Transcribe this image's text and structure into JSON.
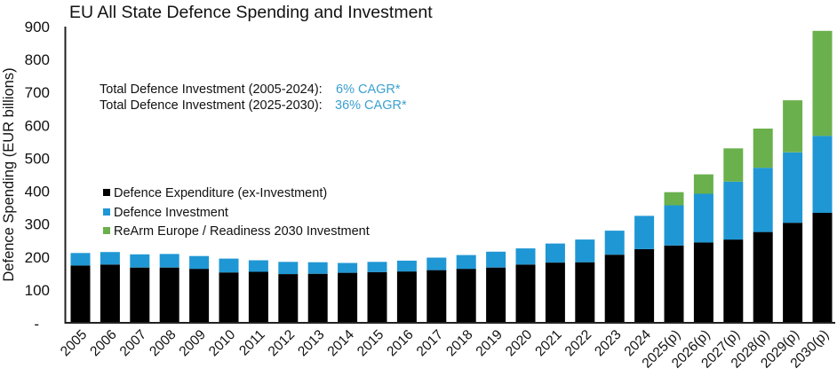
{
  "chart_data": {
    "type": "bar",
    "stacked": true,
    "title": "EU All State Defence Spending and Investment",
    "xlabel": "",
    "ylabel": "Defence Spending (EUR billions)",
    "ylim": [
      0,
      900
    ],
    "yticks": [
      0,
      100,
      200,
      300,
      400,
      500,
      600,
      700,
      800,
      900
    ],
    "ytick_labels": [
      "-",
      "100",
      "200",
      "300",
      "400",
      "500",
      "600",
      "700",
      "800",
      "900"
    ],
    "grid": false,
    "legend_position": "left-middle",
    "categories": [
      "2005",
      "2006",
      "2007",
      "2008",
      "2009",
      "2010",
      "2011",
      "2012",
      "2013",
      "2014",
      "2015",
      "2016",
      "2017",
      "2018",
      "2019",
      "2020",
      "2021",
      "2022",
      "2023",
      "2024",
      "2025(p)",
      "2026(p)",
      "2027(p)",
      "2028(p)",
      "2029(p)",
      "2030(p)"
    ],
    "series": [
      {
        "name": "Defence Expenditure (ex-Investment)",
        "color": "#000000",
        "values": [
          174,
          177,
          168,
          168,
          164,
          153,
          155,
          148,
          149,
          152,
          154,
          156,
          160,
          164,
          168,
          177,
          183,
          184,
          207,
          224,
          235,
          244,
          253,
          276,
          304,
          334
        ]
      },
      {
        "name": "Defence Investment",
        "color": "#1f97d4",
        "values": [
          38,
          38,
          40,
          41,
          39,
          42,
          35,
          37,
          35,
          30,
          31,
          33,
          38,
          42,
          48,
          49,
          58,
          69,
          73,
          101,
          122,
          148,
          176,
          195,
          214,
          234
        ]
      },
      {
        "name": "ReArm Europe / Readiness 2030 Investment",
        "color": "#6ab04c",
        "values": [
          0,
          0,
          0,
          0,
          0,
          0,
          0,
          0,
          0,
          0,
          0,
          0,
          0,
          0,
          0,
          0,
          0,
          0,
          0,
          0,
          40,
          59,
          101,
          119,
          158,
          319
        ]
      }
    ],
    "annotations": [
      {
        "label": "Total Defence Investment (2005-2024):",
        "value": "6% CAGR*"
      },
      {
        "label": "Total Defence Investment (2025-2030):",
        "value": "36% CAGR*"
      }
    ],
    "annotation_value_color": "#3aa0d0",
    "axis_color": "#222222"
  }
}
